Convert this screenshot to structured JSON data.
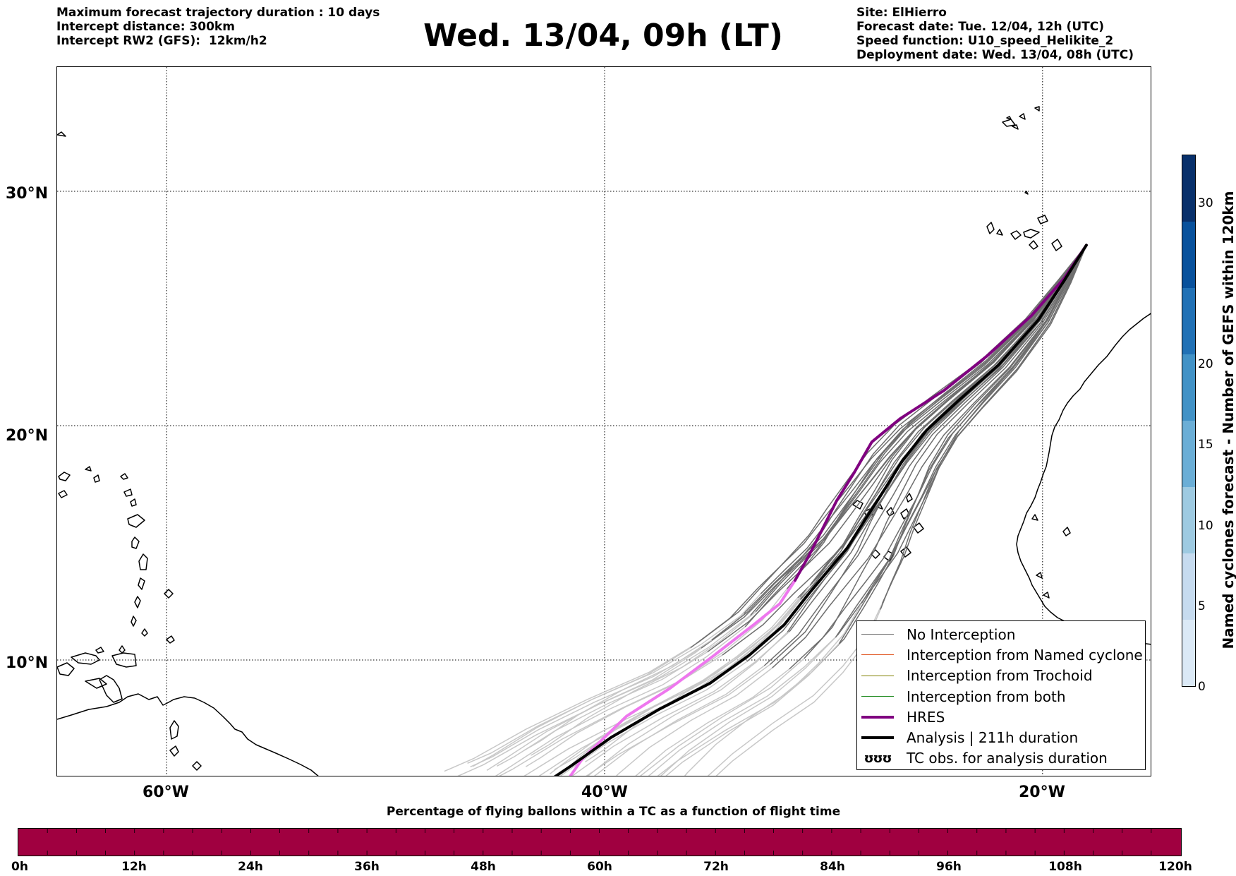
{
  "header": {
    "left_lines": [
      "Maximum forecast trajectory duration : 10 days",
      "Intercept distance: 300km",
      "Intercept RW2 (GFS):  12km/h2"
    ],
    "title": "Wed. 13/04, 09h (LT)",
    "right_lines": [
      "Site: ElHierro",
      "Forecast date: Tue. 12/04, 12h (UTC)",
      "Speed function: U10_speed_Helikite_2",
      "Deployment date: Wed. 13/04, 08h (UTC)"
    ]
  },
  "map": {
    "extent": {
      "lon_min": -65,
      "lon_max": -15,
      "lat_min": 5,
      "lat_max": 35.3
    },
    "lat_gridlines": [
      {
        "lat": 30,
        "label": "30°N"
      },
      {
        "lat": 20,
        "label": "20°N"
      },
      {
        "lat": 10,
        "label": "10°N"
      }
    ],
    "lon_gridlines": [
      {
        "lon": -60,
        "label": "60°W"
      },
      {
        "lon": -40,
        "label": "40°W"
      },
      {
        "lon": -20,
        "label": "20°W"
      }
    ],
    "deployment_site": {
      "lon": -18.0,
      "lat": 27.7
    },
    "colors": {
      "coast": "#000000",
      "no_interception": "#6e6e6e",
      "no_interception_late": "#c8c8c8",
      "hres": "#800080",
      "hres_late": "#ee77ee",
      "analysis": "#000000"
    }
  },
  "trajectories": {
    "hres": [
      [
        -18.0,
        27.7
      ],
      [
        -19.0,
        26.3
      ],
      [
        -20.5,
        24.7
      ],
      [
        -22.5,
        23.0
      ],
      [
        -24.5,
        21.5
      ],
      [
        -26.5,
        20.3
      ],
      [
        -27.8,
        19.3
      ],
      [
        -28.6,
        18.0
      ],
      [
        -29.4,
        16.8
      ],
      [
        -30.1,
        15.5
      ],
      [
        -30.7,
        14.4
      ],
      [
        -31.3,
        13.4
      ],
      [
        -32.0,
        12.4
      ],
      [
        -33.2,
        11.5
      ],
      [
        -35.0,
        10.2
      ],
      [
        -37.0,
        8.8
      ],
      [
        -39.0,
        7.6
      ],
      [
        -41.0,
        5.8
      ],
      [
        -41.6,
        5.0
      ]
    ],
    "hres_split_index": 11,
    "analysis": [
      [
        -18.0,
        27.7
      ],
      [
        -19.0,
        26.2
      ],
      [
        -20.2,
        24.5
      ],
      [
        -22.0,
        22.6
      ],
      [
        -23.8,
        21.1
      ],
      [
        -25.3,
        19.8
      ],
      [
        -26.4,
        18.5
      ],
      [
        -27.2,
        17.3
      ],
      [
        -28.1,
        16.0
      ],
      [
        -28.9,
        14.8
      ],
      [
        -29.8,
        13.8
      ],
      [
        -30.7,
        12.8
      ],
      [
        -31.8,
        11.5
      ],
      [
        -33.4,
        10.2
      ],
      [
        -35.2,
        9.0
      ],
      [
        -37.5,
        7.9
      ],
      [
        -39.7,
        6.7
      ],
      [
        -41.5,
        5.5
      ],
      [
        -42.3,
        5.0
      ]
    ]
  },
  "legend": {
    "items": [
      {
        "label": "No Interception",
        "color": "#6e6e6e",
        "width": 1.5,
        "kind": "line"
      },
      {
        "label": "Interception from Named cyclone",
        "color": "#e0501a",
        "width": 1.5,
        "kind": "line"
      },
      {
        "label": "Interception from Trochoid",
        "color": "#808000",
        "width": 1.5,
        "kind": "line"
      },
      {
        "label": "Interception from both",
        "color": "#1e8a1e",
        "width": 1.5,
        "kind": "line"
      },
      {
        "label": "HRES",
        "color": "#800080",
        "width": 4,
        "kind": "line"
      },
      {
        "label": "Analysis | 211h duration",
        "color": "#000000",
        "width": 4,
        "kind": "line"
      },
      {
        "label": "TC obs. for analysis duration",
        "color": "#000000",
        "glyph": "ʊʊʊ",
        "kind": "glyph"
      }
    ]
  },
  "colorbar_vertical": {
    "title": "Named cyclones forecast - Number of GEFS within 120km",
    "min": 0,
    "max": 33,
    "ticks": [
      0,
      5,
      10,
      15,
      20,
      30
    ],
    "colors": [
      "#dbe9f6",
      "#c6dbef",
      "#9ecae1",
      "#6baed6",
      "#4292c6",
      "#2171b5",
      "#08519c",
      "#08306b"
    ]
  },
  "colorbar_horizontal": {
    "title": "Percentage of flying ballons within a TC as a function of flight time",
    "color": "#a00040",
    "tick_labels": [
      "0h",
      "12h",
      "24h",
      "36h",
      "48h",
      "60h",
      "72h",
      "84h",
      "96h",
      "108h",
      "120h"
    ],
    "minor_divisions": 40
  }
}
